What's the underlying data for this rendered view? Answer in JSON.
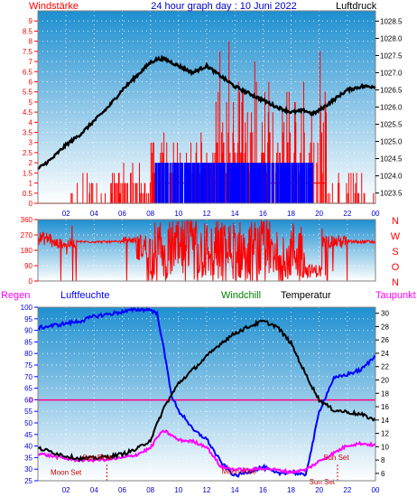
{
  "header": {
    "left_label": "Windstärke",
    "title": "24 hour graph day : 10 Juni 2022",
    "right_label": "Luftdruck"
  },
  "x_ticks": [
    "02",
    "04",
    "06",
    "08",
    "10",
    "12",
    "14",
    "16",
    "18",
    "20",
    "22",
    "00"
  ],
  "compass": [
    "N",
    "W",
    "S",
    "O",
    "N"
  ],
  "colors": {
    "wind": "#ff0000",
    "gust_bar": "#0000ff",
    "pressure": "#000000",
    "humidity": "#0000ff",
    "temperature": "#000000",
    "dewpoint": "#ff00ff",
    "windchill": "#008000",
    "zero_line": "#ff0080",
    "panel_top": "#1e8fd0",
    "panel_bottom": "#ffffff"
  },
  "chart_data": [
    {
      "type": "bar",
      "panel": "wind_pressure",
      "x_range": [
        0,
        24
      ],
      "y_left": {
        "label": "Windstärke",
        "range": [
          0,
          9.5
        ],
        "ticks": [
          0,
          0.5,
          1,
          1.5,
          2,
          2.5,
          3,
          3.5,
          4,
          4.5,
          5,
          5.5,
          6,
          6.5,
          7,
          7.5,
          8,
          8.5,
          9
        ]
      },
      "y_right": {
        "label": "Luftdruck",
        "range": [
          1023.2,
          1028.8
        ],
        "ticks": [
          1023.5,
          1024,
          1024.5,
          1025,
          1025.5,
          1026,
          1026.5,
          1027,
          1027.5,
          1028,
          1028.5
        ]
      },
      "wind_segments": [
        {
          "x_start": 0.0,
          "x_end": 3.5,
          "baseline": 0,
          "peak": 2,
          "density": 0.06
        },
        {
          "x_start": 3.5,
          "x_end": 5.5,
          "baseline": 0,
          "peak": 2,
          "density": 0.3
        },
        {
          "x_start": 5.5,
          "x_end": 8.0,
          "baseline": 0,
          "peak": 2,
          "density": 0.55
        },
        {
          "x_start": 8.0,
          "x_end": 12.5,
          "baseline": 1,
          "peak": 4,
          "density": 0.55
        },
        {
          "x_start": 12.5,
          "x_end": 18.5,
          "baseline": 1,
          "peak": 8,
          "density": 0.65
        },
        {
          "x_start": 18.5,
          "x_end": 20.5,
          "baseline": 1,
          "peak": 9,
          "density": 0.55
        },
        {
          "x_start": 20.5,
          "x_end": 24.0,
          "baseline": 0,
          "peak": 2,
          "density": 0.25
        }
      ],
      "gust_segments": [
        {
          "x_start": 8.3,
          "x_end": 19.6,
          "top": 2,
          "density": 0.85
        }
      ],
      "pressure": {
        "x": [
          0,
          1,
          2,
          3,
          4,
          5,
          6,
          7,
          8,
          8.5,
          9,
          10,
          11,
          12,
          13,
          14,
          15,
          16,
          17,
          18,
          19,
          19.5,
          20,
          21,
          22,
          23,
          24
        ],
        "values": [
          1024.2,
          1024.5,
          1024.9,
          1025.2,
          1025.6,
          1026.0,
          1026.5,
          1026.9,
          1027.3,
          1027.4,
          1027.4,
          1027.2,
          1027.0,
          1027.2,
          1026.9,
          1026.6,
          1026.4,
          1026.2,
          1026.0,
          1025.85,
          1025.9,
          1025.8,
          1025.9,
          1026.2,
          1026.5,
          1026.6,
          1026.6
        ]
      }
    },
    {
      "type": "line",
      "panel": "wind_direction",
      "x_range": [
        0,
        24
      ],
      "y": {
        "range": [
          0,
          360
        ],
        "ticks": [
          0,
          90,
          180,
          270,
          360
        ]
      },
      "segments": [
        {
          "x_start": 0.0,
          "x_end": 1.0,
          "base": 250,
          "spread": 40,
          "spike_prob": 0.05
        },
        {
          "x_start": 1.0,
          "x_end": 2.8,
          "base": 220,
          "spread": 30,
          "spike_prob": 0.1
        },
        {
          "x_start": 2.8,
          "x_end": 6.0,
          "base": 230,
          "spread": 6,
          "spike_prob": 0.0
        },
        {
          "x_start": 6.0,
          "x_end": 7.0,
          "base": 240,
          "spread": 20,
          "spike_prob": 0.05
        },
        {
          "x_start": 7.0,
          "x_end": 8.0,
          "base": 200,
          "spread": 80,
          "spike_prob": 0.15
        },
        {
          "x_start": 8.0,
          "x_end": 19.0,
          "base": 180,
          "spread": 180,
          "spike_prob": 0.12
        },
        {
          "x_start": 19.0,
          "x_end": 20.2,
          "base": 60,
          "spread": 40,
          "spike_prob": 0.0
        },
        {
          "x_start": 20.2,
          "x_end": 22.0,
          "base": 230,
          "spread": 40,
          "spike_prob": 0.05
        },
        {
          "x_start": 22.0,
          "x_end": 24.0,
          "base": 230,
          "spread": 10,
          "spike_prob": 0.0
        }
      ]
    },
    {
      "type": "line",
      "panel": "humidity_temperature",
      "x_range": [
        0,
        24
      ],
      "legend": [
        "Regen",
        "Luftfeuchte",
        "Windchill",
        "Temperatur",
        "Taupunkt"
      ],
      "y_left": {
        "label": "Luftfeuchte",
        "range": [
          25,
          100
        ],
        "ticks": [
          25,
          30,
          35,
          40,
          45,
          50,
          55,
          60,
          65,
          70,
          75,
          80,
          85,
          90,
          95,
          100
        ]
      },
      "y_right": {
        "label": "Temperatur",
        "range": [
          4.9,
          30.9
        ],
        "ticks": [
          6,
          8,
          10,
          12,
          14,
          16,
          18,
          20,
          22,
          24,
          26,
          28,
          30
        ]
      },
      "zero_line": {
        "label": "0",
        "y_right": 17.0
      },
      "humidity": {
        "x": [
          0,
          1,
          2,
          3,
          4,
          5,
          6,
          7,
          8,
          8.5,
          9,
          9.5,
          10,
          10.5,
          11,
          12,
          13,
          14,
          15,
          16,
          17,
          18,
          19,
          19.5,
          20,
          21,
          22,
          23,
          24
        ],
        "values": [
          91,
          92,
          93,
          94,
          96,
          97,
          98,
          99,
          99,
          97,
          80,
          62,
          55,
          52,
          47,
          43,
          33,
          27,
          29,
          31,
          28,
          29,
          27,
          40,
          55,
          69,
          71,
          73,
          79
        ]
      },
      "temperature": {
        "x": [
          0,
          1,
          2,
          3,
          4,
          5,
          6,
          7,
          8,
          9,
          10,
          11,
          12,
          13,
          14,
          15,
          16,
          17,
          18,
          19,
          20,
          21,
          22,
          23,
          24
        ],
        "values": [
          9.8,
          9.2,
          8.6,
          8.2,
          8.3,
          8.5,
          8.9,
          9.6,
          11.0,
          16.0,
          19.5,
          21.5,
          23.5,
          25.5,
          27.0,
          28.0,
          28.8,
          28.0,
          25.5,
          21.0,
          17.0,
          15.5,
          15.2,
          14.8,
          14.0
        ]
      },
      "dewpoint": {
        "x": [
          0,
          1,
          2,
          3,
          4,
          5,
          6,
          7,
          8,
          8.5,
          9,
          10,
          11,
          12,
          13,
          14,
          15,
          16,
          17,
          18,
          19,
          20,
          21,
          22,
          23,
          24
        ],
        "values": [
          9.0,
          8.6,
          8.2,
          8.0,
          8.0,
          8.1,
          8.3,
          8.8,
          9.8,
          11.5,
          12.4,
          11.0,
          10.8,
          10.0,
          7.0,
          6.6,
          6.5,
          6.8,
          6.5,
          6.2,
          6.5,
          7.8,
          9.0,
          10.2,
          10.5,
          10.2
        ]
      },
      "annotations": [
        {
          "text": "Sun Rise",
          "x": 4.2,
          "y": 34
        },
        {
          "text": "Moon Set",
          "x": 2.0,
          "y": 27.5
        },
        {
          "text": "Moon Rise",
          "x": 14.3,
          "y": 28
        },
        {
          "text": "Sun Set",
          "x": 21.2,
          "y": 34
        },
        {
          "text": "Sun Set",
          "x": 20.2,
          "y": 23.5
        }
      ],
      "markers_x": [
        4.9,
        21.3
      ]
    }
  ]
}
